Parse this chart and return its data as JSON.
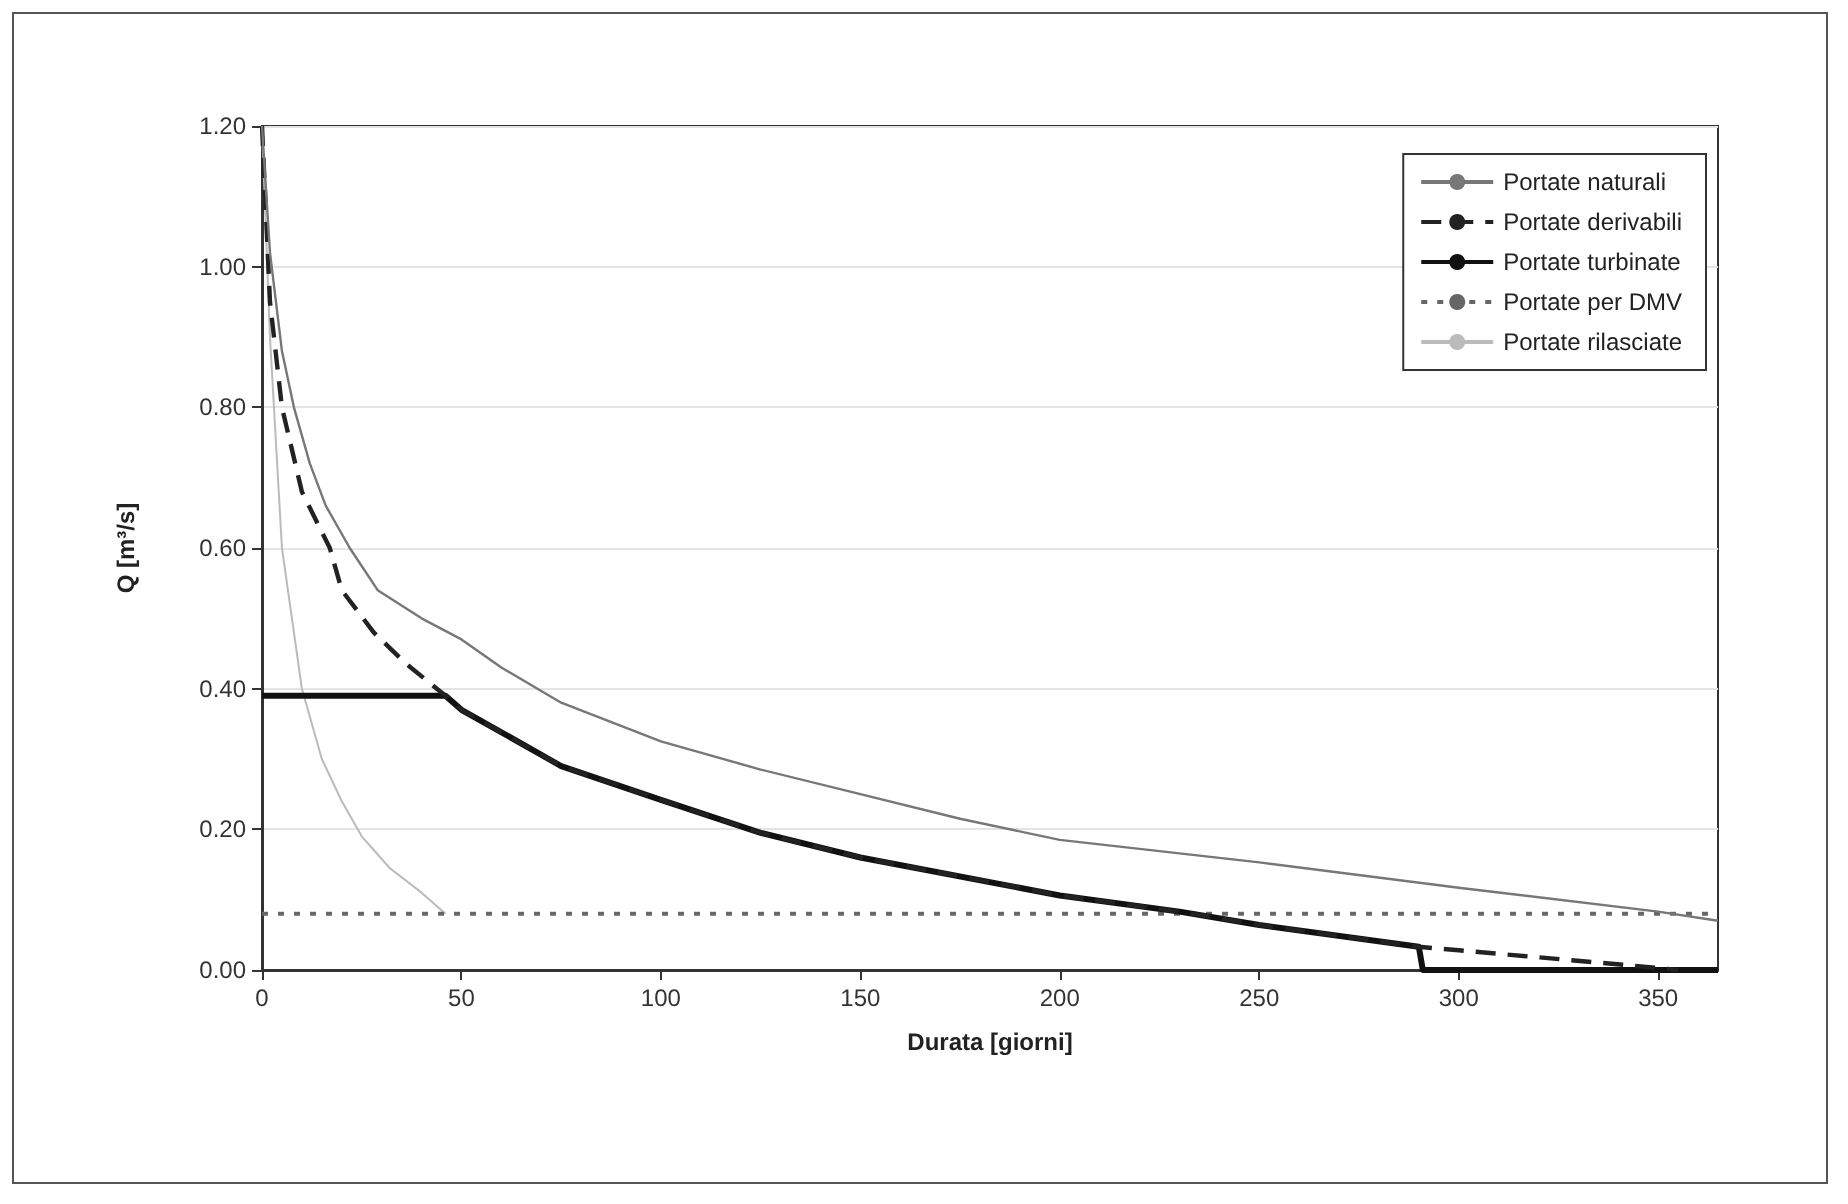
{
  "chart_data": {
    "type": "line",
    "xlabel": "Durata [giorni]",
    "ylabel": "Q [m³/s]",
    "xlim": [
      0,
      365
    ],
    "xticks": [
      0,
      50,
      100,
      150,
      200,
      250,
      300,
      350
    ],
    "ylim": [
      0,
      1.2
    ],
    "yticks": [
      {
        "value": 0,
        "label": "0.00"
      },
      {
        "value": 0.2,
        "label": "0.20"
      },
      {
        "value": 0.4,
        "label": "0.40"
      },
      {
        "value": 0.6,
        "label": "0.60"
      },
      {
        "value": 0.8,
        "label": "0.80"
      },
      {
        "value": 1,
        "label": "1.00"
      },
      {
        "value": 1.2,
        "label": "1.20"
      }
    ],
    "grid": "y",
    "legend": "top right",
    "marker": "none",
    "series": [
      {
        "name": "Portate naturali",
        "color": "#777777",
        "line_style": "solid",
        "x": [
          0,
          2,
          5,
          8,
          12,
          16,
          22,
          29,
          40,
          50,
          60,
          75,
          100,
          125,
          150,
          175,
          200,
          250,
          300,
          350,
          365
        ],
        "values": [
          1.2,
          1.02,
          0.88,
          0.8,
          0.72,
          0.66,
          0.6,
          0.54,
          0.5,
          0.47,
          0.43,
          0.38,
          0.325,
          0.285,
          0.25,
          0.215,
          0.185,
          0.153,
          0.117,
          0.083,
          0.07
        ]
      },
      {
        "name": "Portate derivabili",
        "color": "#222222",
        "line_style": "dashed",
        "x": [
          0,
          2,
          5,
          10,
          17,
          20,
          28,
          36,
          46,
          50,
          75,
          100,
          125,
          150,
          200,
          230,
          250,
          290,
          300,
          320,
          350,
          355
        ],
        "values": [
          1.2,
          0.95,
          0.8,
          0.68,
          0.6,
          0.54,
          0.48,
          0.436,
          0.39,
          0.37,
          0.29,
          0.242,
          0.195,
          0.16,
          0.106,
          0.083,
          0.064,
          0.033,
          0.028,
          0.018,
          0.003,
          0
        ]
      },
      {
        "name": "Portate turbinate",
        "color": "#111111",
        "line_style": "solid",
        "x": [
          0,
          46,
          50,
          75,
          100,
          125,
          150,
          200,
          230,
          250,
          290,
          291,
          365
        ],
        "values": [
          0.39,
          0.39,
          0.37,
          0.29,
          0.242,
          0.195,
          0.16,
          0.106,
          0.083,
          0.064,
          0.033,
          0,
          0
        ]
      },
      {
        "name": "Portate per DMV",
        "color": "#666666",
        "line_style": "dotted",
        "x": [
          0,
          365
        ],
        "values": [
          0.08,
          0.08
        ]
      },
      {
        "name": "Portate rilasciate",
        "color": "#bbbbbb",
        "line_style": "solid",
        "x": [
          0,
          2,
          5,
          10,
          15,
          20,
          25,
          32,
          40,
          46
        ],
        "values": [
          1.2,
          0.9,
          0.6,
          0.4,
          0.3,
          0.24,
          0.19,
          0.145,
          0.11,
          0.08
        ]
      }
    ]
  }
}
